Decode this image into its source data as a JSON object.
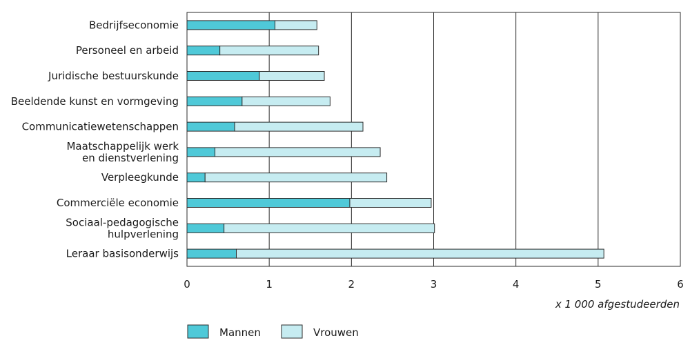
{
  "chart_data": {
    "type": "bar",
    "orientation": "horizontal",
    "stacked": true,
    "categories": [
      [
        "Bedrijfseconomie"
      ],
      [
        "Personeel en arbeid"
      ],
      [
        "Juridische bestuurskunde"
      ],
      [
        "Beeldende kunst en vormgeving"
      ],
      [
        "Communicatiewetenschappen"
      ],
      [
        "Maatschappelijk werk",
        "en dienstverlening"
      ],
      [
        "Verpleegkunde"
      ],
      [
        "Commerciële economie"
      ],
      [
        "Sociaal-pedagogische",
        "hulpverlening"
      ],
      [
        "Leraar basisonderwijs"
      ]
    ],
    "series": [
      {
        "name": "Mannen",
        "color": "#4fc9d8",
        "values": [
          1.07,
          0.4,
          0.88,
          0.67,
          0.58,
          0.34,
          0.22,
          1.98,
          0.45,
          0.6
        ]
      },
      {
        "name": "Vrouwen",
        "color": "#c6ecf1",
        "values": [
          0.51,
          1.2,
          0.79,
          1.07,
          1.56,
          2.01,
          2.21,
          0.99,
          2.56,
          4.47
        ]
      }
    ],
    "xlim": [
      0,
      6
    ],
    "xticks": [
      "0",
      "1",
      "2",
      "3",
      "4",
      "5",
      "6"
    ],
    "xlabel": "x 1 000 afgestudeerden",
    "grid": "vertical",
    "legend_position": "bottom-left"
  }
}
